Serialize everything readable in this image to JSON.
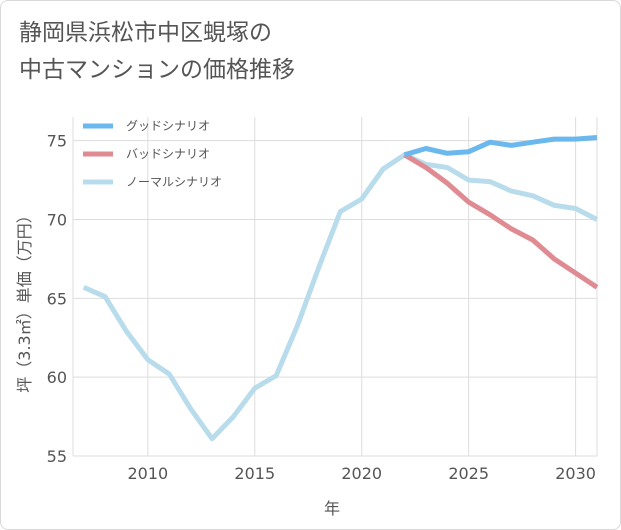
{
  "title_lines": [
    "静岡県浜松市中区蜆塚の",
    "中古マンションの価格推移"
  ],
  "chart_data": {
    "type": "line",
    "xlabel": "年",
    "ylabel": "坪（3.3㎡）単価（万円）",
    "xlim": [
      2006.5,
      2031
    ],
    "ylim": [
      55,
      76.5
    ],
    "xticks": [
      2010,
      2015,
      2020,
      2025,
      2030
    ],
    "yticks": [
      55,
      60,
      65,
      70,
      75
    ],
    "grid": true,
    "legend_position": "top-left",
    "series": [
      {
        "name": "グッドシナリオ",
        "color": "#6bb8ee",
        "x": [
          2022,
          2023,
          2024,
          2025,
          2026,
          2027,
          2028,
          2029,
          2030,
          2031
        ],
        "y": [
          74.1,
          74.5,
          74.2,
          74.3,
          74.9,
          74.7,
          74.9,
          75.1,
          75.1,
          75.2
        ]
      },
      {
        "name": "バッドシナリオ",
        "color": "#e08a92",
        "x": [
          2022,
          2023,
          2024,
          2025,
          2026,
          2027,
          2028,
          2029,
          2030,
          2031
        ],
        "y": [
          74.1,
          73.3,
          72.3,
          71.1,
          70.3,
          69.4,
          68.7,
          67.5,
          66.6,
          65.7
        ]
      },
      {
        "name": "ノーマルシナリオ",
        "color": "#b8dcec",
        "x": [
          2007,
          2008,
          2009,
          2010,
          2011,
          2012,
          2013,
          2014,
          2015,
          2016,
          2017,
          2018,
          2019,
          2020,
          2021,
          2022,
          2023,
          2024,
          2025,
          2026,
          2027,
          2028,
          2029,
          2030,
          2031
        ],
        "y": [
          65.7,
          65.1,
          62.9,
          61.1,
          60.2,
          58.0,
          56.1,
          57.5,
          59.3,
          60.1,
          63.3,
          67.0,
          70.5,
          71.3,
          73.2,
          74.1,
          73.5,
          73.3,
          72.5,
          72.4,
          71.8,
          71.5,
          70.9,
          70.7,
          70.0
        ]
      }
    ]
  }
}
